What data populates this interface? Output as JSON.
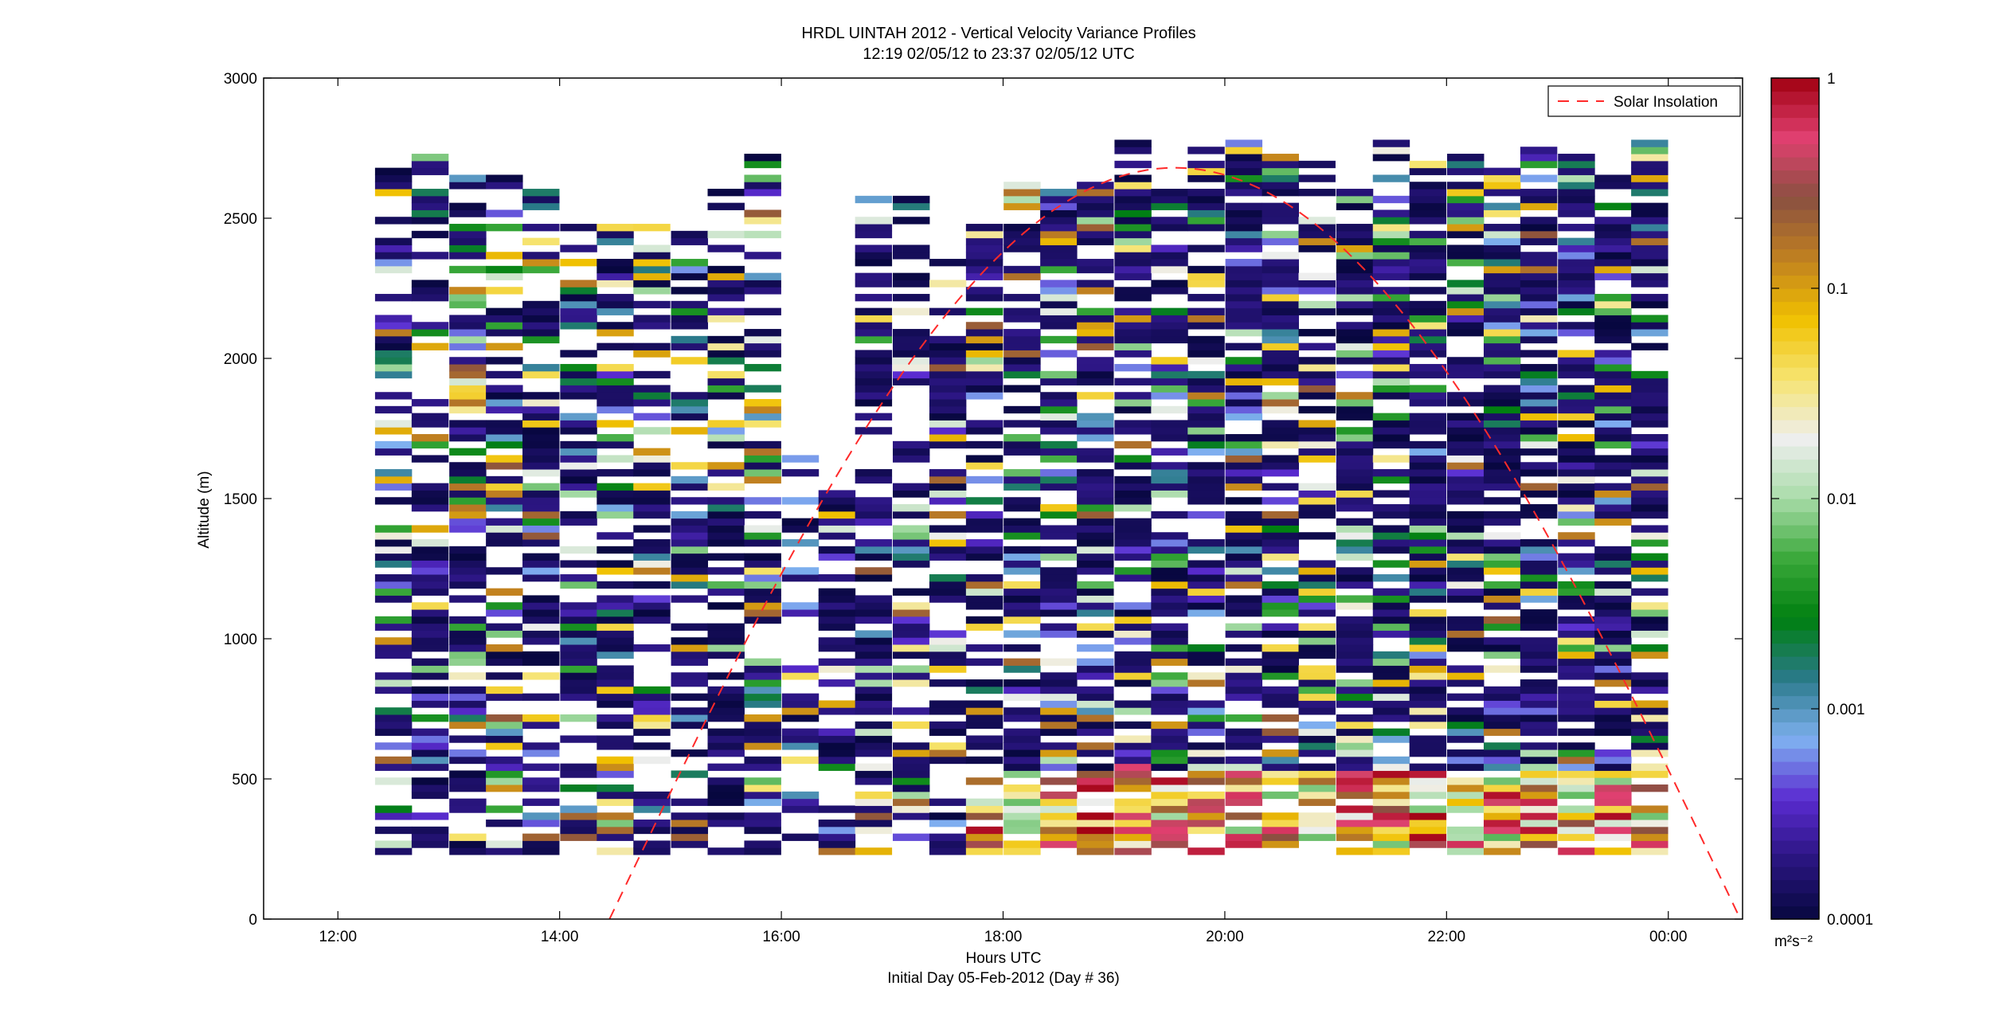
{
  "chart_data": {
    "type": "heatmap",
    "title": "HRDL UINTAH 2012 - Vertical Velocity Variance Profiles",
    "subtitle": "12:19 02/05/12 to 23:37 02/05/12  UTC",
    "xlabel": "Hours UTC",
    "footer": "Initial Day 05-Feb-2012 (Day # 36)",
    "ylabel": "Altitude (m)",
    "x_range_hours": [
      11.33,
      24.67
    ],
    "y_range": [
      0,
      3000
    ],
    "x_ticks": [
      {
        "hour": 12,
        "label": "12:00"
      },
      {
        "hour": 14,
        "label": "14:00"
      },
      {
        "hour": 16,
        "label": "16:00"
      },
      {
        "hour": 18,
        "label": "18:00"
      },
      {
        "hour": 20,
        "label": "20:00"
      },
      {
        "hour": 22,
        "label": "22:00"
      },
      {
        "hour": 24,
        "label": "00:00"
      }
    ],
    "y_ticks": [
      {
        "value": 0,
        "label": "0"
      },
      {
        "value": 500,
        "label": "500"
      },
      {
        "value": 1000,
        "label": "1000"
      },
      {
        "value": 1500,
        "label": "1500"
      },
      {
        "value": 2000,
        "label": "2000"
      },
      {
        "value": 2500,
        "label": "2500"
      },
      {
        "value": 3000,
        "label": "3000"
      }
    ],
    "legend": {
      "entry": "Solar Insolation",
      "position": "top-right",
      "color": "#ff2a2a",
      "style": "dashed"
    },
    "solar_insolation_curve": {
      "start_hour": 14.45,
      "peak_hour": 19.55,
      "end_hour": 24.65,
      "peak_altitude_m": 2680
    },
    "colorbar": {
      "scale": "log",
      "min": 0.0001,
      "max": 1,
      "unit_label": "m²s⁻²",
      "ticks": [
        {
          "value": 1,
          "label": "1"
        },
        {
          "value": 0.1,
          "label": "0.1"
        },
        {
          "value": 0.01,
          "label": "0.01"
        },
        {
          "value": 0.001,
          "label": "0.001"
        },
        {
          "value": 0.0001,
          "label": "0.0001"
        }
      ],
      "colormap": [
        "#07073f",
        "#2a1580",
        "#5a2bd0",
        "#7fb0f0",
        "#2a7a8a",
        "#007f10",
        "#3aa83a",
        "#a8dca8",
        "#eeeeee",
        "#f6e470",
        "#f0c000",
        "#c08020",
        "#8a5040",
        "#e04070",
        "#a00010"
      ]
    },
    "time_columns_hours": [
      12.5,
      12.83,
      13.17,
      13.5,
      13.83,
      14.17,
      14.5,
      14.83,
      15.17,
      15.5,
      15.83,
      16.17,
      16.5,
      16.83,
      17.17,
      17.5,
      17.83,
      18.17,
      18.5,
      18.83,
      19.17,
      19.5,
      19.83,
      20.17,
      20.5,
      20.83,
      21.17,
      21.5,
      21.83,
      22.17,
      22.5,
      22.83,
      23.17,
      23.5,
      23.83
    ],
    "column_altitude_top_m": [
      2660,
      2720,
      2650,
      2640,
      2610,
      2480,
      2480,
      2480,
      2440,
      2620,
      2720,
      1650,
      1530,
      2560,
      2560,
      2350,
      2480,
      2640,
      2600,
      2620,
      2780,
      2620,
      2740,
      2760,
      2720,
      2690,
      2620,
      2760,
      2700,
      2720,
      2680,
      2740,
      2720,
      2650,
      2780
    ],
    "column_altitude_bottom_m": [
      230,
      230,
      230,
      230,
      230,
      230,
      230,
      230,
      230,
      230,
      230,
      230,
      230,
      230,
      230,
      230,
      230,
      230,
      230,
      230,
      230,
      230,
      230,
      230,
      230,
      230,
      230,
      230,
      230,
      230,
      230,
      230,
      230,
      230,
      230
    ],
    "note_on_cells": "Each column is a vertical profile of gates (~25 m); cell color encodes log10 variance. Cells with no retrieval are blank."
  }
}
